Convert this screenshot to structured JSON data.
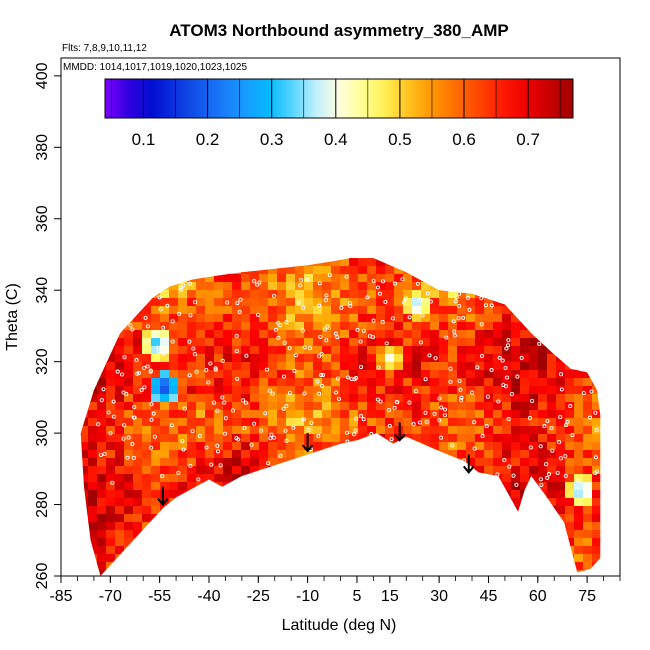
{
  "chart_data": {
    "type": "heatmap",
    "title": "ATOM3 Northbound asymmetry_380_AMP",
    "flights_text": "Flts: 7,8,9,10,11,12",
    "mmdd_text": "MMDD: 1014,1017,1019,1020,1023,1025",
    "xlabel": "Latitude (deg N)",
    "ylabel": "Theta (C)",
    "xlim": [
      -85,
      85
    ],
    "ylim": [
      260,
      405
    ],
    "x_ticks": [
      -85,
      -70,
      -55,
      -40,
      -25,
      -10,
      5,
      15,
      30,
      45,
      60,
      75
    ],
    "y_ticks": [
      260,
      280,
      300,
      320,
      340,
      360,
      380,
      400
    ],
    "colorbar": {
      "range": [
        0.04,
        0.77
      ],
      "ticks": [
        0.1,
        0.2,
        0.3,
        0.4,
        0.5,
        0.6,
        0.7
      ],
      "tick_labels": [
        "0.1",
        "0.2",
        "0.3",
        "0.4",
        "0.5",
        "0.6",
        "0.7"
      ],
      "colors": [
        "#7f00ff",
        "#0000cc",
        "#1e90ff",
        "#00bfff",
        "#ffffff",
        "#ffff66",
        "#ffa500",
        "#ff4500",
        "#ff0000",
        "#a00000"
      ]
    },
    "top_boundary": [
      [
        -75,
        312
      ],
      [
        -72,
        318
      ],
      [
        -67,
        328
      ],
      [
        -62,
        333
      ],
      [
        -57,
        338
      ],
      [
        -52,
        341
      ],
      [
        -45,
        343
      ],
      [
        -38,
        344
      ],
      [
        -30,
        345
      ],
      [
        -20,
        346
      ],
      [
        -10,
        347
      ],
      [
        -3,
        348
      ],
      [
        3,
        349
      ],
      [
        10,
        349
      ],
      [
        20,
        345
      ],
      [
        30,
        340
      ],
      [
        40,
        339
      ],
      [
        50,
        336
      ],
      [
        58,
        328
      ],
      [
        65,
        322
      ],
      [
        70,
        318
      ],
      [
        75,
        317
      ],
      [
        78,
        312
      ],
      [
        79,
        305
      ]
    ],
    "bottom_boundary": [
      [
        79,
        265
      ],
      [
        76,
        262
      ],
      [
        72,
        261
      ],
      [
        68,
        275
      ],
      [
        62,
        283
      ],
      [
        58,
        288
      ],
      [
        56,
        284
      ],
      [
        54,
        278
      ],
      [
        51,
        283
      ],
      [
        48,
        288
      ],
      [
        42,
        289
      ],
      [
        38,
        292
      ],
      [
        30,
        295
      ],
      [
        20,
        299
      ],
      [
        16,
        297
      ],
      [
        11,
        300
      ],
      [
        5,
        298
      ],
      [
        0,
        297
      ],
      [
        -10,
        294
      ],
      [
        -20,
        291
      ],
      [
        -30,
        288
      ],
      [
        -36,
        285
      ],
      [
        -40,
        287
      ],
      [
        -50,
        282
      ],
      [
        -54,
        279
      ],
      [
        -65,
        268
      ],
      [
        -70,
        263
      ],
      [
        -73,
        260
      ],
      [
        -76,
        270
      ],
      [
        -78,
        285
      ],
      [
        -79,
        300
      ]
    ],
    "arrows": [
      {
        "x": -54,
        "y_top": 285,
        "y_tip": 280
      },
      {
        "x": -10,
        "y_top": 300,
        "y_tip": 295
      },
      {
        "x": 18,
        "y_top": 303,
        "y_tip": 298
      },
      {
        "x": 39,
        "y_top": 294,
        "y_tip": 289
      }
    ],
    "blue_patches": [
      {
        "x": -57,
        "y": 326,
        "value": 0.28
      },
      {
        "x": -55,
        "y": 314,
        "value": 0.15
      },
      {
        "x": 72,
        "y": 285,
        "value": 0.3
      },
      {
        "x": 22,
        "y": 337,
        "value": 0.33
      },
      {
        "x": 14,
        "y": 322,
        "value": 0.38
      }
    ]
  }
}
